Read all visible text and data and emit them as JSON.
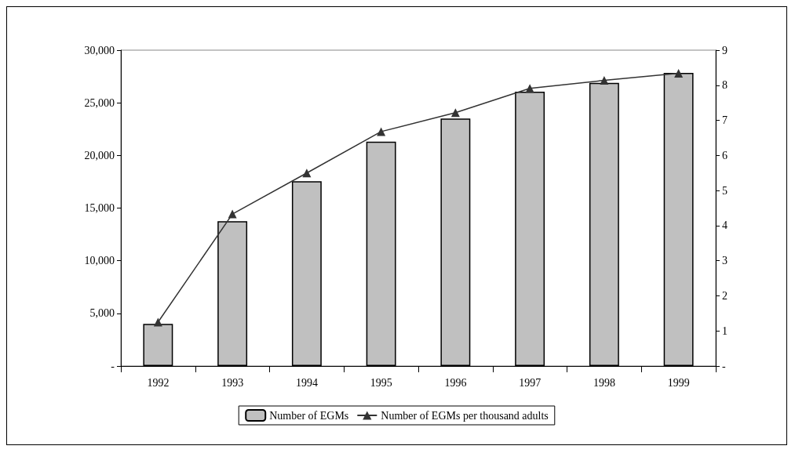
{
  "chart_data": {
    "type": "bar",
    "categories": [
      "1992",
      "1993",
      "1994",
      "1995",
      "1996",
      "1997",
      "1998",
      "1999"
    ],
    "series": [
      {
        "name": "Number of EGMs",
        "color": "#c0c0c0",
        "values": [
          4000,
          13750,
          17550,
          21300,
          23500,
          26050,
          26900,
          27850
        ]
      },
      {
        "name": "Number of EGMs per thousand adults",
        "type": "line",
        "axis": "y2",
        "color": "#333333",
        "values": [
          1.25,
          4.33,
          5.5,
          6.68,
          7.22,
          7.91,
          8.14,
          8.34
        ]
      }
    ],
    "ylim": [
      0,
      30000
    ],
    "yticks": [
      {
        "value": 0,
        "label": "-"
      },
      {
        "value": 5000,
        "label": "5,000"
      },
      {
        "value": 10000,
        "label": "10,000"
      },
      {
        "value": 15000,
        "label": "15,000"
      },
      {
        "value": 20000,
        "label": "20,000"
      },
      {
        "value": 25000,
        "label": "25,000"
      },
      {
        "value": 30000,
        "label": "30,000"
      }
    ],
    "y2lim": [
      0,
      9
    ],
    "y2ticks": [
      {
        "value": 0,
        "label": "-"
      },
      1,
      2,
      3,
      4,
      5,
      6,
      7,
      8,
      9
    ],
    "grid": false,
    "legend": "bottom",
    "marker": "triangle",
    "line_style": "solid"
  }
}
